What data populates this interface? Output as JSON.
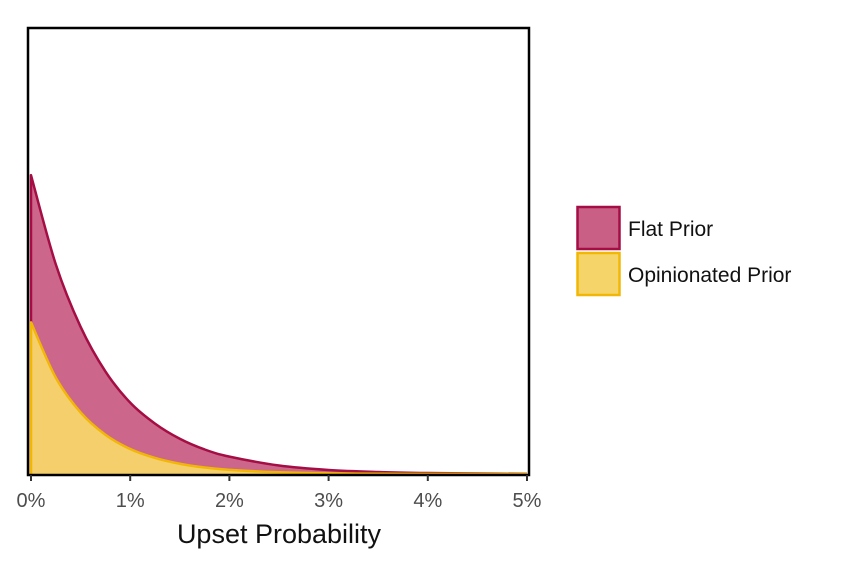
{
  "chart_data": {
    "type": "area",
    "title": "",
    "xlabel": "Upset Probability",
    "ylabel": "",
    "xlim": [
      0,
      0.05
    ],
    "ylim": [
      0,
      1
    ],
    "x_ticks": [
      0,
      0.01,
      0.02,
      0.03,
      0.04,
      0.05
    ],
    "x_tick_labels": [
      "0%",
      "1%",
      "2%",
      "3%",
      "4%",
      "5%"
    ],
    "y_ticks_shown": false,
    "grid": false,
    "legend_position": "right",
    "x": [
      0,
      0.0025,
      0.005,
      0.0075,
      0.01,
      0.0125,
      0.015,
      0.0175,
      0.02,
      0.025,
      0.03,
      0.035,
      0.04,
      0.045,
      0.05
    ],
    "series": [
      {
        "name": "Flat Prior",
        "fill": "#c95f85",
        "stroke": "#a50d45",
        "values": [
          0.67,
          0.47,
          0.33,
          0.23,
          0.16,
          0.113,
          0.079,
          0.055,
          0.039,
          0.019,
          0.009,
          0.0045,
          0.0022,
          0.0011,
          0.0005
        ]
      },
      {
        "name": "Opinionated Prior",
        "fill": "#f5d56a",
        "stroke": "#f2b705",
        "values": [
          0.34,
          0.216,
          0.138,
          0.088,
          0.056,
          0.036,
          0.023,
          0.0145,
          0.0093,
          0.0038,
          0.0015,
          0.0006,
          0.00025,
          0.0001,
          4e-05
        ]
      }
    ]
  }
}
